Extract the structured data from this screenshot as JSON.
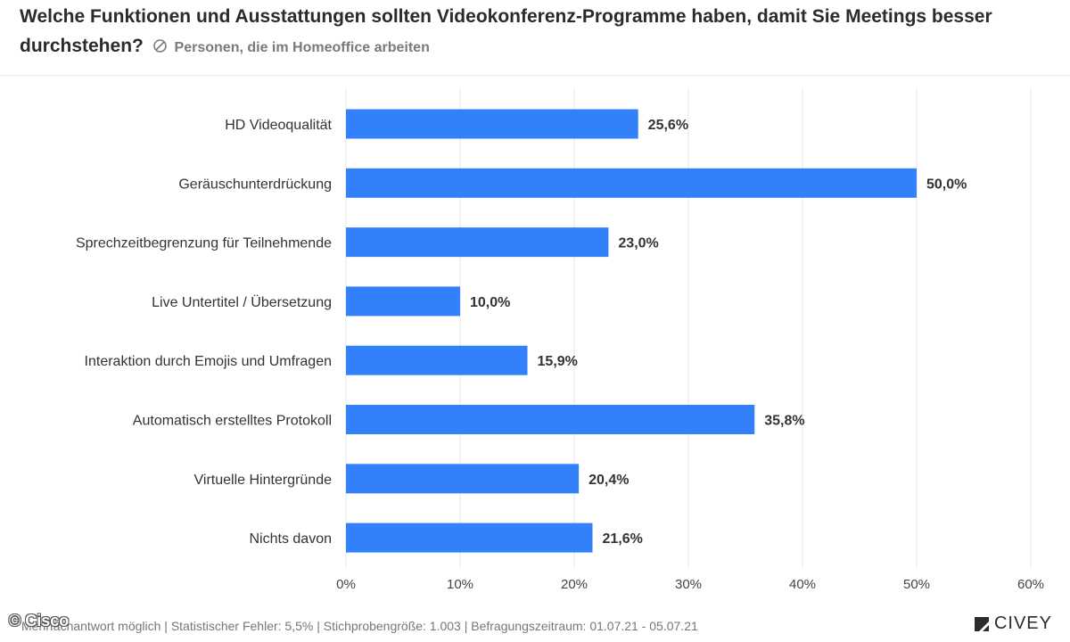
{
  "chart_data": {
    "type": "bar",
    "orientation": "horizontal",
    "title": "Welche Funktionen und Ausstattungen sollten Videokonferenz-Programme haben, damit Sie Meetings besser durchstehen?",
    "subtitle": "Personen, die im Homeoffice arbeiten",
    "categories": [
      "HD Videoqualität",
      "Geräuschunterdrückung",
      "Sprechzeitbegrenzung für Teilnehmende",
      "Live Untertitel / Übersetzung",
      "Interaktion durch Emojis und Umfragen",
      "Automatisch erstelltes Protokoll",
      "Virtuelle Hintergründe",
      "Nichts davon"
    ],
    "values": [
      25.6,
      50.0,
      23.0,
      10.0,
      15.9,
      35.8,
      20.4,
      21.6
    ],
    "value_labels": [
      "25,6%",
      "50,0%",
      "23,0%",
      "10,0%",
      "15,9%",
      "35,8%",
      "20,4%",
      "21,6%"
    ],
    "xlim": [
      0,
      60
    ],
    "xticks": [
      0,
      10,
      20,
      30,
      40,
      50,
      60
    ],
    "xtick_labels": [
      "0%",
      "10%",
      "20%",
      "30%",
      "40%",
      "50%",
      "60%"
    ],
    "grid": true,
    "bar_color": "#3380fb",
    "grid_color": "#e4e4e4"
  },
  "footer": {
    "text": "Mehrfachantwort möglich | Statistischer Fehler: 5,5% | Stichprobengröße: 1.003 | Befragungszeitraum: 01.07.21 - 05.07.21"
  },
  "watermark": "© Cisco",
  "logo": {
    "name": "CIVEY",
    "icon": "civey-logo-icon"
  }
}
